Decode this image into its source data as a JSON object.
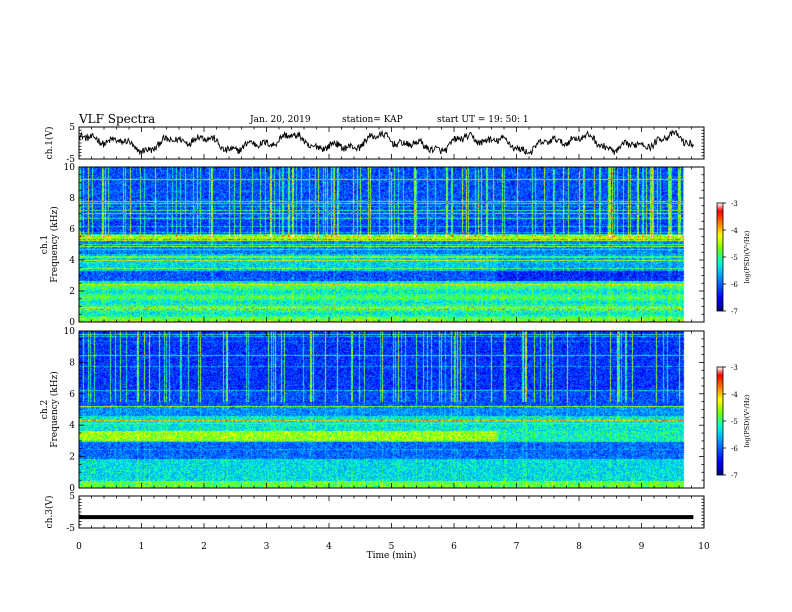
{
  "header": {
    "title": "VLF Spectra",
    "date": "Jan. 20, 2019",
    "station": "station= KAP",
    "start": "start UT =   19: 50: 1"
  },
  "colors": {
    "trace": "#000000",
    "background": "#ffffff",
    "colormap": [
      "#00007f",
      "#0000ff",
      "#00bfff",
      "#00ffbf",
      "#7fff00",
      "#ffff00",
      "#ff8000",
      "#ff0000",
      "#ffffff"
    ]
  },
  "chart_data": [
    {
      "type": "line",
      "panel": "ch1-waveform",
      "ylabel": "ch.1(V)",
      "ylim": [
        -5,
        5
      ],
      "yticks": [
        -5,
        5
      ],
      "xlim": [
        0,
        10
      ],
      "x_extent": [
        0,
        9.83
      ],
      "samples_note": "noisy voltage trace oscillating roughly between -3.5 V and +3.5 V"
    },
    {
      "type": "heatmap",
      "panel": "ch1-spectrogram",
      "ylabel_top": "ch.1",
      "ylabel": "Frequency (kHz)",
      "ylim": [
        0,
        10
      ],
      "yticks": [
        0,
        2,
        4,
        6,
        8,
        10
      ],
      "xlim": [
        0,
        10
      ],
      "x_extent": [
        0,
        9.83
      ],
      "colorbar": {
        "label": "log(PSD)(V²/Hz)",
        "range": [
          -7,
          -3
        ],
        "ticks": [
          -3,
          -4,
          -5,
          -6,
          -7
        ]
      }
    },
    {
      "type": "heatmap",
      "panel": "ch2-spectrogram",
      "ylabel_top": "ch.2",
      "ylabel": "Frequency (kHz)",
      "ylim": [
        0,
        10
      ],
      "yticks": [
        0,
        2,
        4,
        6,
        8,
        10
      ],
      "xlim": [
        0,
        10
      ],
      "x_extent": [
        0,
        9.83
      ],
      "colorbar": {
        "label": "log(PSD)(V²/Hz)",
        "range": [
          -7,
          -3
        ],
        "ticks": [
          -3,
          -4,
          -5,
          -6,
          -7
        ]
      }
    },
    {
      "type": "line",
      "panel": "ch3-waveform",
      "ylabel": "ch.3(V)",
      "ylim": [
        -5,
        5
      ],
      "yticks": [
        -5,
        5
      ],
      "xlim": [
        0,
        10
      ],
      "x_extent": [
        0,
        9.83
      ],
      "values_note": "constant level near -1.6 V",
      "level": -1.6
    }
  ],
  "xaxis": {
    "label": "Time (min)",
    "ticks": [
      0,
      1,
      2,
      3,
      4,
      5,
      6,
      7,
      8,
      9,
      10
    ]
  }
}
